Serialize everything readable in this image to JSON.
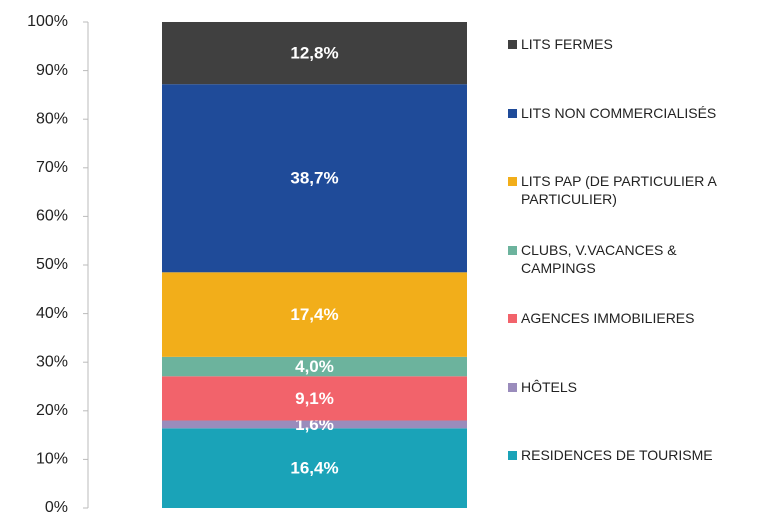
{
  "chart_data": {
    "type": "stacked-bar",
    "categories": [
      null
    ],
    "series": [
      {
        "name": "RESIDENCES DE TOURISME",
        "color": "#1aa3b8",
        "values": [
          16.4
        ],
        "value_labels": [
          "16,4%"
        ]
      },
      {
        "name": "HÔTELS",
        "color": "#9a8cbc",
        "values": [
          1.6
        ],
        "value_labels": [
          "1,6%"
        ]
      },
      {
        "name": "AGENCES IMMOBILIERES",
        "color": "#f2636b",
        "values": [
          9.1
        ],
        "value_labels": [
          "9,1%"
        ]
      },
      {
        "name": "CLUBS, V.VACANCES & CAMPINGS",
        "color": "#6cb39d",
        "values": [
          4.0
        ],
        "value_labels": [
          "4,0%"
        ]
      },
      {
        "name": "LITS PAP (DE PARTICULIER A PARTICULIER)",
        "color": "#f2ae1a",
        "values": [
          17.4
        ],
        "value_labels": [
          "17,4%"
        ]
      },
      {
        "name": "LITS NON COMMERCIALISÉS",
        "color": "#1f4b99",
        "values": [
          38.7
        ],
        "value_labels": [
          "38,7%"
        ]
      },
      {
        "name": "LITS FERMES",
        "color": "#404040",
        "values": [
          12.8
        ],
        "value_labels": [
          "12,8%"
        ]
      }
    ],
    "ylim": [
      0,
      100
    ],
    "yticks": [
      {
        "value": 0,
        "label": "0%"
      },
      {
        "value": 10,
        "label": "10%"
      },
      {
        "value": 20,
        "label": "20%"
      },
      {
        "value": 30,
        "label": "30%"
      },
      {
        "value": 40,
        "label": "40%"
      },
      {
        "value": 50,
        "label": "50%"
      },
      {
        "value": 60,
        "label": "60%"
      },
      {
        "value": 70,
        "label": "70%"
      },
      {
        "value": 80,
        "label": "80%"
      },
      {
        "value": 90,
        "label": "90%"
      },
      {
        "value": 100,
        "label": "100%"
      }
    ],
    "legend": "right"
  }
}
